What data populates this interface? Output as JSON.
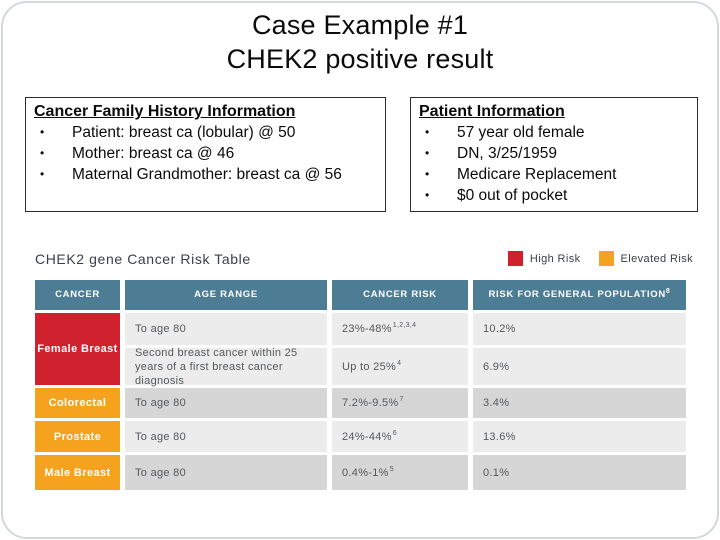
{
  "title": {
    "line1": "Case Example #1",
    "line2": "CHEK2 positive result"
  },
  "family_history_box": {
    "heading": "Cancer Family History Information",
    "bullets": [
      "Patient: breast ca (lobular) @ 50",
      "Mother: breast ca @ 46",
      "Maternal Grandmother: breast ca @ 56"
    ]
  },
  "patient_info_box": {
    "heading": "Patient Information",
    "bullets": [
      "57 year old female",
      "DN, 3/25/1959",
      "Medicare Replacement",
      "$0 out of pocket"
    ]
  },
  "risk_table": {
    "title": "CHEK2 gene Cancer Risk Table",
    "legend": [
      {
        "label": "High Risk",
        "color": "#d0212f"
      },
      {
        "label": "Elevated Risk",
        "color": "#f5a21f"
      }
    ],
    "columns": {
      "cancer": "CANCER",
      "age_range": "AGE RANGE",
      "cancer_risk": "CANCER RISK",
      "population": "RISK FOR GENERAL POPULATION",
      "population_sup": "8"
    },
    "rows": [
      {
        "cancer": "Female Breast",
        "risk_level": "high",
        "age_range": "To age 80",
        "cancer_risk": "23%-48%",
        "cancer_risk_sup": "1,2,3,4",
        "general_population": "10.2%"
      },
      {
        "cancer": "Female Breast",
        "risk_level": "high",
        "age_range": "Second breast cancer within 25 years of a first breast cancer diagnosis",
        "cancer_risk": "Up to 25%",
        "cancer_risk_sup": "4",
        "general_population": "6.9%"
      },
      {
        "cancer": "Colorectal",
        "risk_level": "elevated",
        "age_range": "To age 80",
        "cancer_risk": "7.2%-9.5%",
        "cancer_risk_sup": "7",
        "general_population": "3.4%"
      },
      {
        "cancer": "Prostate",
        "risk_level": "elevated",
        "age_range": "To age 80",
        "cancer_risk": "24%-44%",
        "cancer_risk_sup": "6",
        "general_population": "13.6%"
      },
      {
        "cancer": "Male Breast",
        "risk_level": "elevated",
        "age_range": "To age 80",
        "cancer_risk": "0.4%-1%",
        "cancer_risk_sup": "5",
        "general_population": "0.1%"
      }
    ],
    "colors": {
      "header_teal": "#4d7d95",
      "high_risk_red": "#d0212f",
      "elevated_risk_orange": "#f5a21f",
      "row_light_gray": "#ececec",
      "row_dark_gray": "#d6d6d6"
    }
  }
}
